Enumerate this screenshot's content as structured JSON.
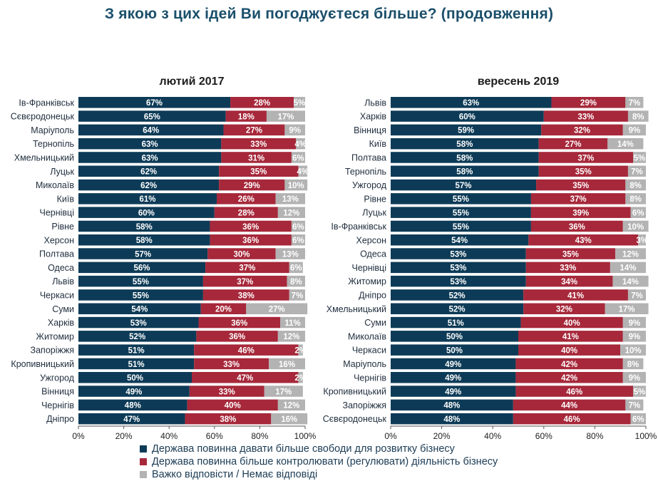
{
  "page": {
    "title": "З якою з цих ідей Ви погоджуєтеся більше? (продовження)"
  },
  "legend": [
    {
      "label": "Держава повинна давати більше свободи для розвитку бізнесу",
      "color": "#0d3b57"
    },
    {
      "label": "Держава повинна більше контролювати (регулювати) діяльність бізнесу",
      "color": "#a6283a"
    },
    {
      "label": "Важко відповісти / Немає відповіді",
      "color": "#b3b3b3"
    }
  ],
  "chart_data": [
    {
      "type": "bar",
      "orientation": "horizontal",
      "stacked": true,
      "title": "лютий 2017",
      "xlim": [
        0,
        100
      ],
      "xticks": [
        "0%",
        "20%",
        "40%",
        "60%",
        "80%",
        "100%"
      ],
      "colors": [
        "#0d3b57",
        "#a6283a",
        "#b3b3b3"
      ],
      "categories": [
        "Ів-Франківськ",
        "Сєвєродонецьк",
        "Маріуполь",
        "Тернопіль",
        "Хмельницький",
        "Луцьк",
        "Миколаїв",
        "Київ",
        "Чернівці",
        "Рівне",
        "Херсон",
        "Полтава",
        "Одеса",
        "Львів",
        "Черкаси",
        "Суми",
        "Харків",
        "Житомир",
        "Запоріжжя",
        "Кропивницький",
        "Ужгород",
        "Вінниця",
        "Чернігів",
        "Дніпро"
      ],
      "series": [
        {
          "values": [
            67,
            65,
            64,
            63,
            63,
            62,
            62,
            61,
            60,
            58,
            58,
            57,
            56,
            55,
            55,
            54,
            53,
            52,
            51,
            51,
            50,
            49,
            48,
            47
          ]
        },
        {
          "values": [
            28,
            18,
            27,
            33,
            31,
            35,
            29,
            26,
            28,
            36,
            36,
            30,
            37,
            37,
            38,
            20,
            36,
            36,
            46,
            33,
            47,
            33,
            40,
            38
          ]
        },
        {
          "values": [
            5,
            17,
            9,
            4,
            6,
            4,
            10,
            13,
            12,
            6,
            6,
            13,
            6,
            8,
            7,
            27,
            11,
            12,
            2,
            16,
            2,
            17,
            12,
            16
          ]
        }
      ]
    },
    {
      "type": "bar",
      "orientation": "horizontal",
      "stacked": true,
      "title": "вересень 2019",
      "xlim": [
        0,
        100
      ],
      "xticks": [
        "0%",
        "20%",
        "40%",
        "60%",
        "80%",
        "100%"
      ],
      "colors": [
        "#0d3b57",
        "#a6283a",
        "#b3b3b3"
      ],
      "categories": [
        "Львів",
        "Харків",
        "Вінниця",
        "Київ",
        "Полтава",
        "Тернопіль",
        "Ужгород",
        "Рівне",
        "Луцьк",
        "Ів-Франківськ",
        "Херсон",
        "Одеса",
        "Чернівці",
        "Житомир",
        "Дніпро",
        "Хмельницький",
        "Суми",
        "Миколаїв",
        "Черкаси",
        "Маріуполь",
        "Чернігів",
        "Кропивницький",
        "Запоріжжя",
        "Сєвєродонецьк"
      ],
      "series": [
        {
          "values": [
            63,
            60,
            59,
            58,
            58,
            58,
            57,
            55,
            55,
            55,
            54,
            53,
            53,
            53,
            52,
            52,
            51,
            50,
            50,
            49,
            49,
            49,
            48,
            48
          ]
        },
        {
          "values": [
            29,
            33,
            32,
            27,
            37,
            35,
            35,
            37,
            39,
            36,
            43,
            35,
            33,
            34,
            41,
            32,
            40,
            41,
            40,
            42,
            42,
            46,
            44,
            46
          ]
        },
        {
          "values": [
            7,
            8,
            9,
            14,
            5,
            7,
            8,
            8,
            6,
            10,
            3,
            12,
            14,
            14,
            7,
            17,
            9,
            9,
            10,
            8,
            9,
            5,
            7,
            6
          ]
        }
      ]
    }
  ]
}
